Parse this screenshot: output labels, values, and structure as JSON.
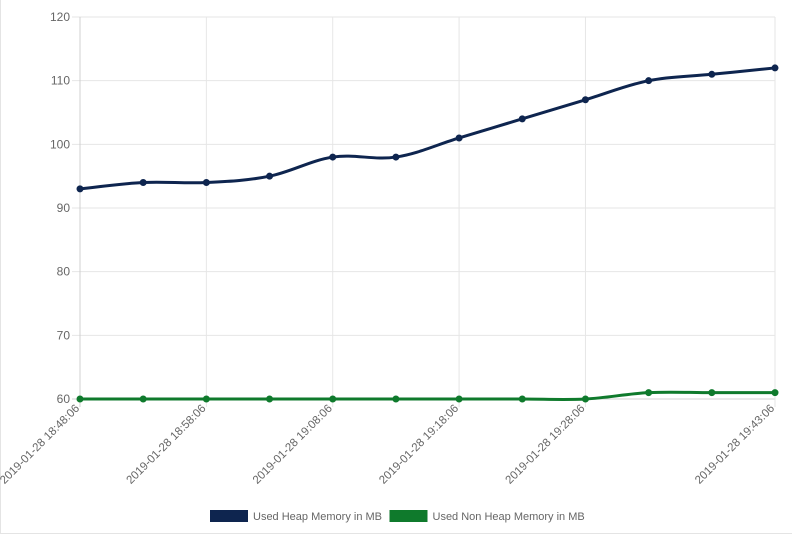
{
  "chart_data": {
    "type": "line",
    "x": [
      "2019-01-28 18:48:06",
      "",
      "2019-01-28 18:58:06",
      "",
      "2019-01-28 19:08:06",
      "",
      "2019-01-28 19:18:06",
      "",
      "2019-01-28 19:28:06",
      "",
      "",
      "2019-01-28 19:43:06"
    ],
    "x_tick_labels": [
      "2019-01-28 18:48:06",
      "2019-01-28 18:58:06",
      "2019-01-28 19:08:06",
      "2019-01-28 19:18:06",
      "2019-01-28 19:28:06",
      "2019-01-28 19:43:06"
    ],
    "series": [
      {
        "name": "Used Heap Memory in MB",
        "color": "#0e254f",
        "values": [
          93,
          94,
          94,
          95,
          98,
          98,
          101,
          104,
          107,
          110,
          111,
          112
        ]
      },
      {
        "name": "Used Non Heap Memory in MB",
        "color": "#0f7a2c",
        "values": [
          60,
          60,
          60,
          60,
          60,
          60,
          60,
          60,
          60,
          61,
          61,
          61
        ]
      }
    ],
    "ylim": [
      60,
      120
    ],
    "y_ticks": [
      60,
      70,
      80,
      90,
      100,
      110,
      120
    ],
    "grid": true,
    "legend": "bottom"
  }
}
